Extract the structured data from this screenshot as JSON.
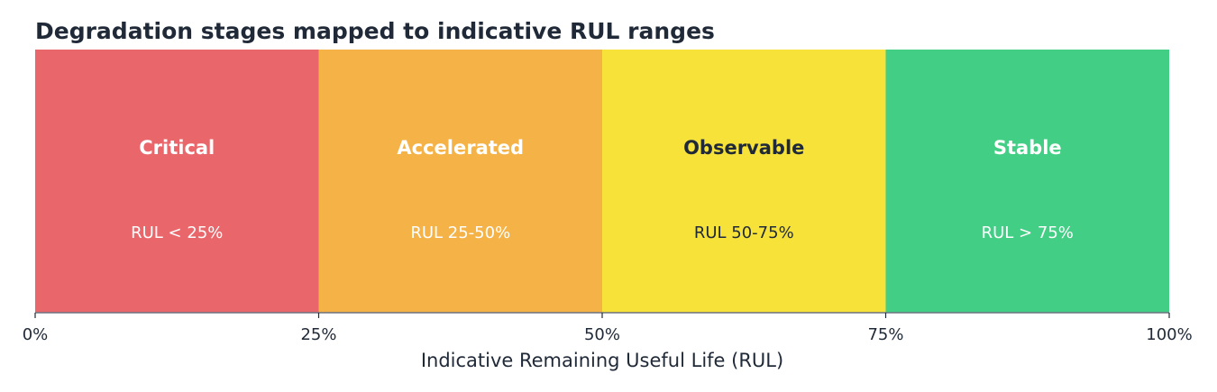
{
  "chart_data": {
    "type": "bar",
    "title": "Degradation stages mapped to indicative RUL ranges",
    "xlabel": "Indicative Remaining Useful Life (RUL)",
    "ylabel": "",
    "xlim": [
      0,
      100
    ],
    "x_unit": "%",
    "grid": false,
    "x_ticks": [
      "0%",
      "25%",
      "50%",
      "75%",
      "100%"
    ],
    "x_tick_values": [
      0,
      25,
      50,
      75,
      100
    ],
    "segments": [
      {
        "stage": "Critical",
        "range_label": "RUL < 25%",
        "start": 0,
        "end": 25,
        "color": "#e9666b",
        "text_color": "#ffffff"
      },
      {
        "stage": "Accelerated",
        "range_label": "RUL 25-50%",
        "start": 25,
        "end": 50,
        "color": "#f5b246",
        "text_color": "#ffffff"
      },
      {
        "stage": "Observable",
        "range_label": "RUL 50-75%",
        "start": 50,
        "end": 75,
        "color": "#f7e23a",
        "text_color": "#1f2937"
      },
      {
        "stage": "Stable",
        "range_label": "RUL > 75%",
        "start": 75,
        "end": 100,
        "color": "#42ce84",
        "text_color": "#ffffff"
      }
    ]
  }
}
